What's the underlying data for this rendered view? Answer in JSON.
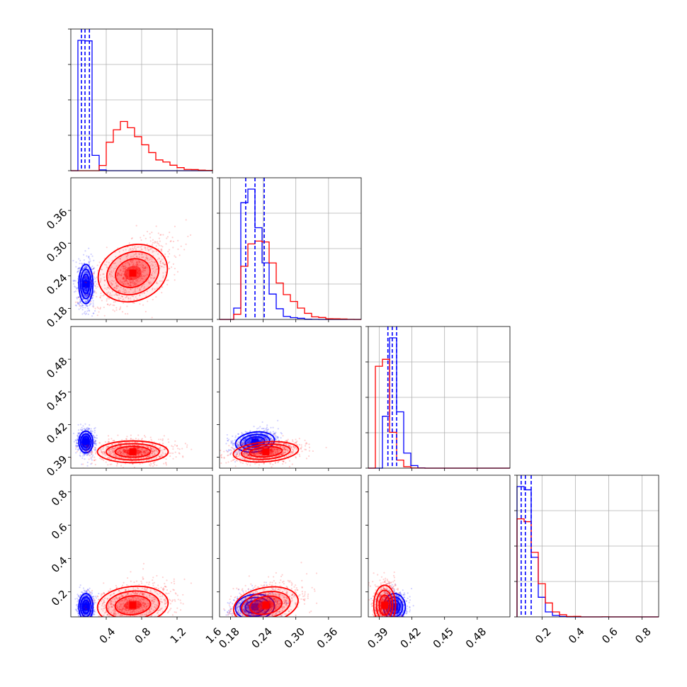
{
  "chart_data": {
    "type": "corner",
    "colors": {
      "a": "#0000ff",
      "b": "#ff0000"
    },
    "grid": true,
    "series": [
      {
        "color": "blue"
      },
      {
        "color": "red"
      }
    ],
    "params": [
      {
        "range": [
          0.0,
          1.6
        ],
        "ticks": [
          0.4,
          0.8,
          1.2,
          1.6
        ],
        "tick_labels": [
          "0.4",
          "0.8",
          "1.2",
          "1.6"
        ],
        "a": {
          "mean": 0.17,
          "sd": 0.04,
          "q": [
            0.12,
            0.16,
            0.21
          ]
        },
        "b": {
          "mean": 0.7,
          "sd": 0.2,
          "q": [
            0.53,
            0.7,
            0.88
          ]
        }
      },
      {
        "range": [
          0.16,
          0.42
        ],
        "ticks": [
          0.18,
          0.24,
          0.3,
          0.36
        ],
        "tick_labels": [
          "0.18",
          "0.24",
          "0.30",
          "0.36"
        ],
        "a": {
          "mean": 0.225,
          "sd": 0.018,
          "q": [
            0.208,
            0.225,
            0.242
          ]
        },
        "b": {
          "mean": 0.245,
          "sd": 0.03,
          "q": [
            0.22,
            0.245,
            0.27
          ]
        }
      },
      {
        "range": [
          0.38,
          0.51
        ],
        "ticks": [
          0.39,
          0.42,
          0.45,
          0.48
        ],
        "tick_labels": [
          "0.39",
          "0.42",
          "0.45",
          "0.48"
        ],
        "a": {
          "mean": 0.404,
          "sd": 0.005,
          "q": [
            0.398,
            0.402,
            0.406
          ]
        },
        "b": {
          "mean": 0.395,
          "sd": 0.005,
          "q": [
            0.39,
            0.395,
            0.4
          ]
        }
      },
      {
        "range": [
          0.05,
          0.9
        ],
        "ticks": [
          0.2,
          0.4,
          0.6,
          0.8
        ],
        "tick_labels": [
          "0.2",
          "0.4",
          "0.6",
          "0.8"
        ],
        "a": {
          "mean": 0.11,
          "sd": 0.04,
          "q": [
            0.075,
            0.1,
            0.135
          ]
        },
        "b": {
          "mean": 0.12,
          "sd": 0.06,
          "q": [
            0.07,
            0.11,
            0.17
          ]
        }
      }
    ],
    "correlations": {
      "1-0": {
        "a": 0.0,
        "b": 0.5
      },
      "2-0": {
        "a": 0.0,
        "b": 0.0
      },
      "2-1": {
        "a": 0.3,
        "b": 0.3
      },
      "3-0": {
        "a": 0.0,
        "b": 0.2
      },
      "3-1": {
        "a": 0.2,
        "b": 0.4
      },
      "3-2": {
        "a": 0.0,
        "b": 0.0
      }
    }
  }
}
